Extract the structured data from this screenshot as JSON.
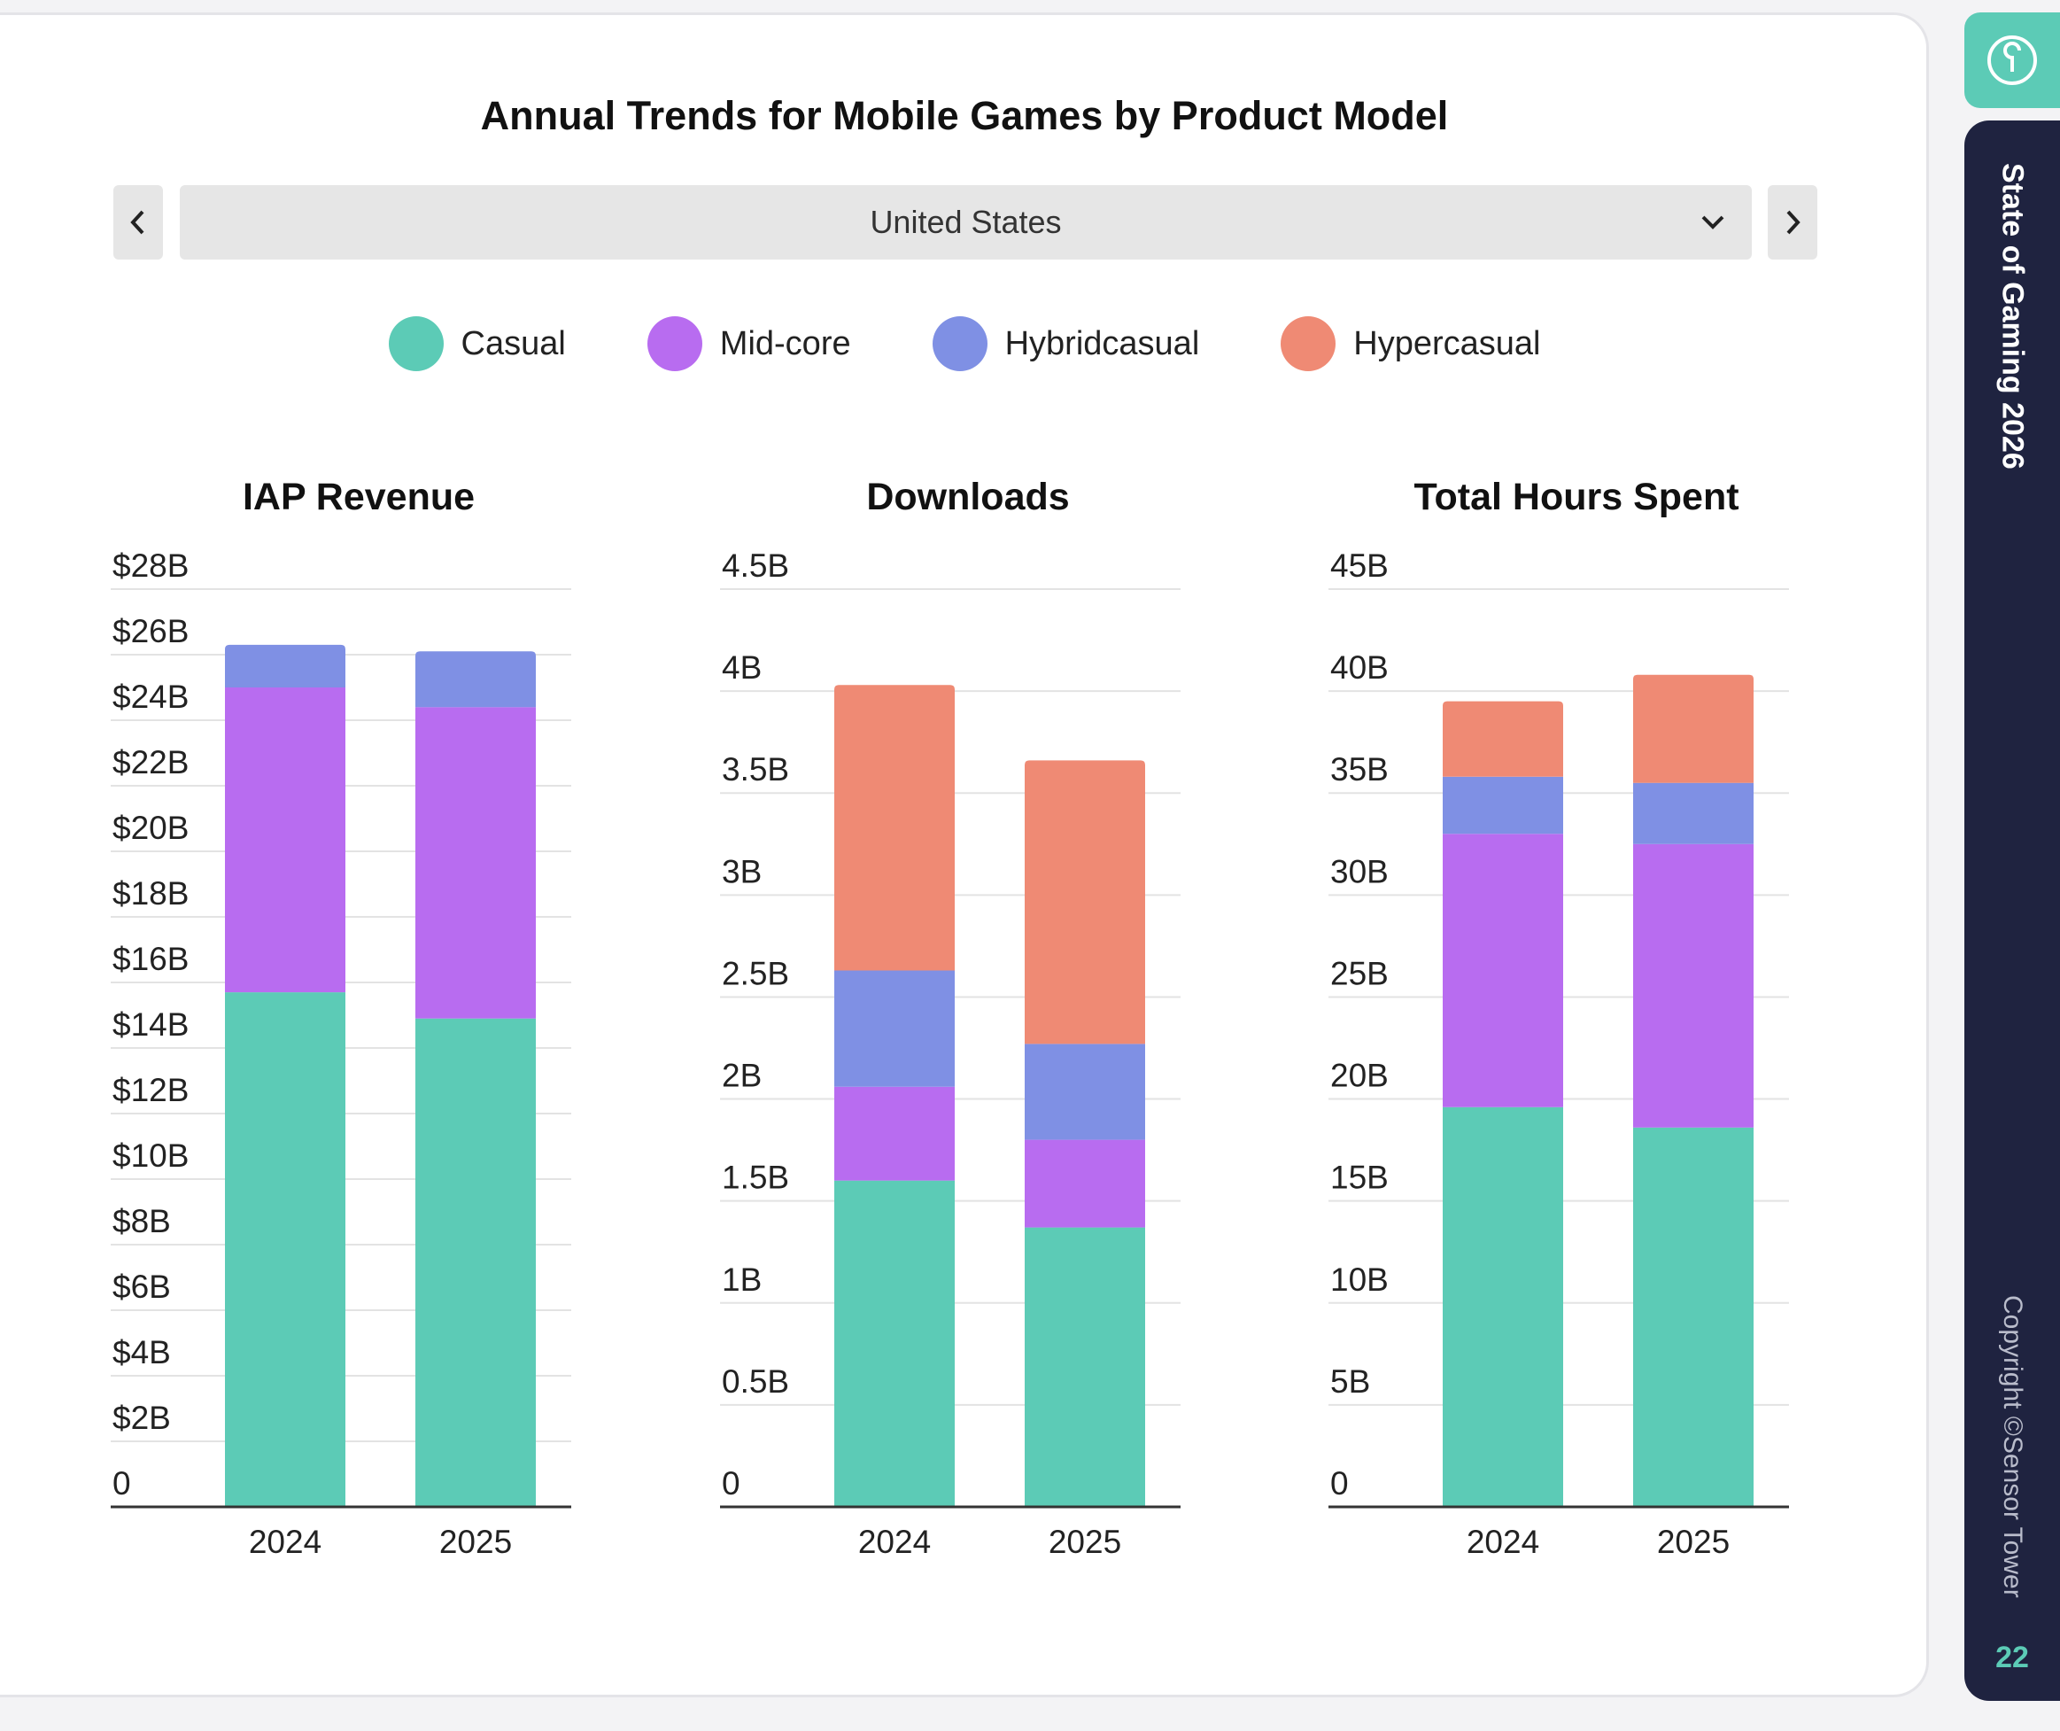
{
  "title": "Annual Trends for Mobile Games by Product Model",
  "selector": {
    "value": "United States"
  },
  "icons": {
    "prev": "chevron-left-icon",
    "next": "chevron-right-icon",
    "dropdown": "chevron-down-icon",
    "logo": "sensor-tower-logo-icon"
  },
  "legend": [
    {
      "label": "Casual",
      "color": "#5ccbb6"
    },
    {
      "label": "Mid-core",
      "color": "#b86cf0"
    },
    {
      "label": "Hybridcasual",
      "color": "#7f90e4"
    },
    {
      "label": "Hypercasual",
      "color": "#ef8a74"
    }
  ],
  "sidebar": {
    "title": "State of Gaming 2026",
    "copyright": "Copyright ©Sensor Tower",
    "page": "22"
  },
  "chart_data": [
    {
      "type": "bar",
      "stacked": true,
      "title": "IAP Revenue",
      "categories": [
        "2024",
        "2025"
      ],
      "yticks": [
        "0",
        "$2B",
        "$4B",
        "$6B",
        "$8B",
        "$10B",
        "$12B",
        "$14B",
        "$16B",
        "$18B",
        "$20B",
        "$22B",
        "$24B",
        "$26B",
        "$28B"
      ],
      "ylim": [
        0,
        28
      ],
      "series": [
        {
          "name": "Casual",
          "values": [
            15.7,
            14.9
          ]
        },
        {
          "name": "Mid-core",
          "values": [
            9.3,
            9.5
          ]
        },
        {
          "name": "Hybridcasual",
          "values": [
            1.3,
            1.7
          ]
        },
        {
          "name": "Hypercasual",
          "values": [
            0,
            0
          ]
        }
      ]
    },
    {
      "type": "bar",
      "stacked": true,
      "title": "Downloads",
      "categories": [
        "2024",
        "2025"
      ],
      "yticks": [
        "0",
        "0.5B",
        "1B",
        "1.5B",
        "2B",
        "2.5B",
        "3B",
        "3.5B",
        "4B",
        "4.5B"
      ],
      "ylim": [
        0,
        4.5
      ],
      "series": [
        {
          "name": "Casual",
          "values": [
            1.6,
            1.37
          ]
        },
        {
          "name": "Mid-core",
          "values": [
            0.46,
            0.43
          ]
        },
        {
          "name": "Hybridcasual",
          "values": [
            0.57,
            0.47
          ]
        },
        {
          "name": "Hypercasual",
          "values": [
            1.4,
            1.39
          ]
        }
      ]
    },
    {
      "type": "bar",
      "stacked": true,
      "title": "Total Hours Spent",
      "categories": [
        "2024",
        "2025"
      ],
      "yticks": [
        "0",
        "5B",
        "10B",
        "15B",
        "20B",
        "25B",
        "30B",
        "35B",
        "40B",
        "45B"
      ],
      "ylim": [
        0,
        45
      ],
      "series": [
        {
          "name": "Casual",
          "values": [
            19.6,
            18.6
          ]
        },
        {
          "name": "Mid-core",
          "values": [
            13.4,
            13.9
          ]
        },
        {
          "name": "Hybridcasual",
          "values": [
            2.8,
            3.0
          ]
        },
        {
          "name": "Hypercasual",
          "values": [
            3.7,
            5.3
          ]
        }
      ]
    }
  ]
}
